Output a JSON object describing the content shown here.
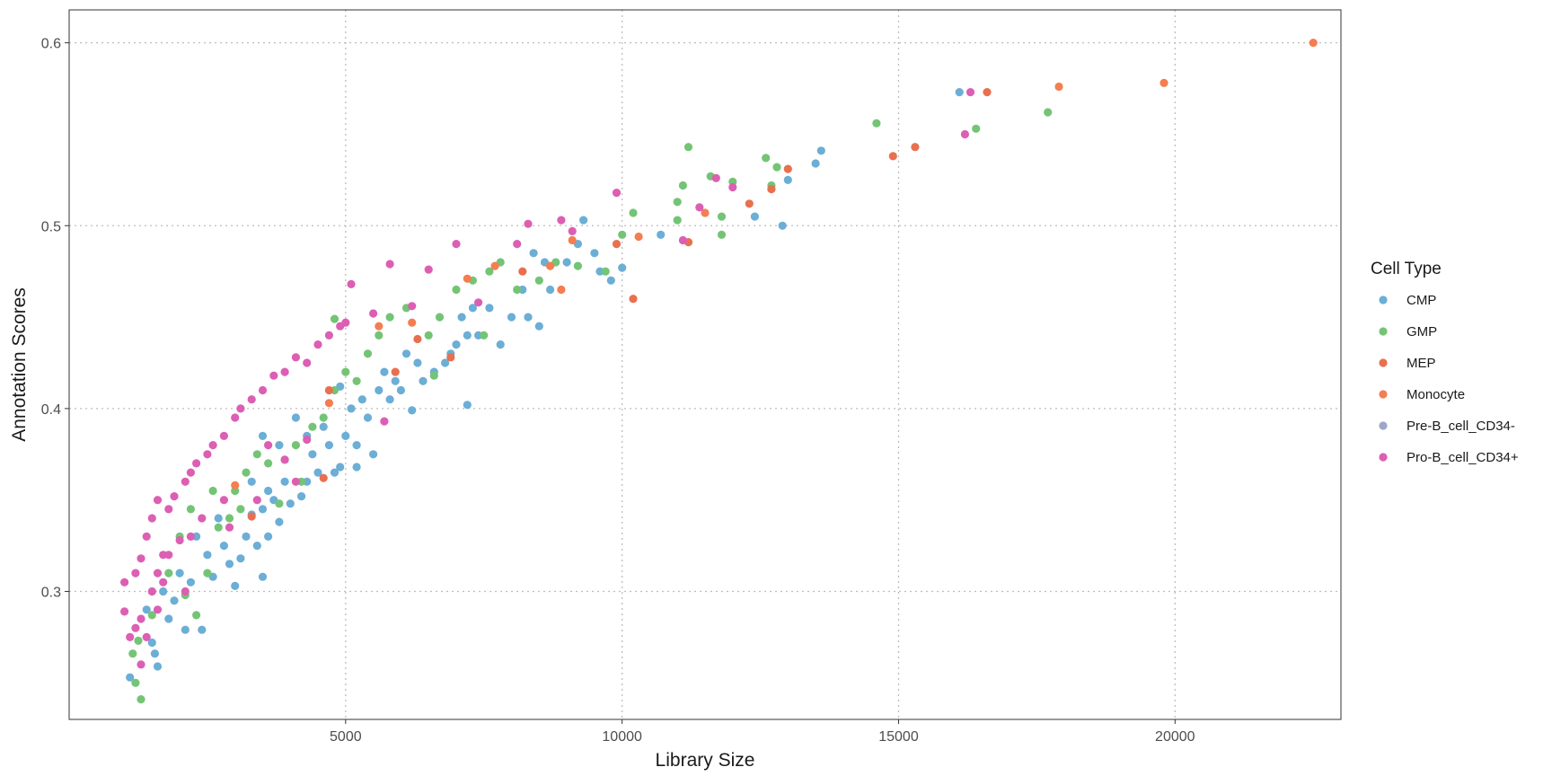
{
  "chart_data": {
    "type": "scatter",
    "title": "",
    "xlabel": "Library Size",
    "ylabel": "Annotation Scores",
    "xlim": [
      0,
      23000
    ],
    "ylim": [
      0.23,
      0.618
    ],
    "x_ticks": [
      5000,
      10000,
      15000,
      20000
    ],
    "y_ticks": [
      0.3,
      0.4,
      0.5,
      0.6
    ],
    "grid": true,
    "grid_style": "dotted",
    "legend": {
      "title": "Cell Type",
      "position": "right",
      "entries": [
        {
          "name": "CMP",
          "color": "#6baed6"
        },
        {
          "name": "GMP",
          "color": "#74c476"
        },
        {
          "name": "MEP",
          "color": "#e8704f"
        },
        {
          "name": "Monocyte",
          "color": "#f47e50"
        },
        {
          "name": "Pre-B_cell_CD34-",
          "color": "#9ea6c9"
        },
        {
          "name": "Pro-B_cell_CD34+",
          "color": "#dc5fb3"
        }
      ]
    },
    "series": [
      {
        "name": "CMP",
        "color": "#6baed6",
        "points": [
          [
            1100,
            0.253
          ],
          [
            1500,
            0.272
          ],
          [
            1600,
            0.259
          ],
          [
            1550,
            0.266
          ],
          [
            1800,
            0.285
          ],
          [
            2100,
            0.279
          ],
          [
            2400,
            0.279
          ],
          [
            1400,
            0.29
          ],
          [
            1700,
            0.3
          ],
          [
            1900,
            0.295
          ],
          [
            2200,
            0.305
          ],
          [
            2000,
            0.31
          ],
          [
            2600,
            0.308
          ],
          [
            2900,
            0.315
          ],
          [
            3100,
            0.318
          ],
          [
            3000,
            0.303
          ],
          [
            3500,
            0.308
          ],
          [
            3400,
            0.325
          ],
          [
            3600,
            0.33
          ],
          [
            3800,
            0.338
          ],
          [
            3200,
            0.33
          ],
          [
            3300,
            0.342
          ],
          [
            2800,
            0.325
          ],
          [
            2500,
            0.32
          ],
          [
            2300,
            0.33
          ],
          [
            2700,
            0.34
          ],
          [
            3500,
            0.345
          ],
          [
            3700,
            0.35
          ],
          [
            4000,
            0.348
          ],
          [
            4200,
            0.352
          ],
          [
            3900,
            0.36
          ],
          [
            3600,
            0.355
          ],
          [
            3300,
            0.36
          ],
          [
            4300,
            0.36
          ],
          [
            4500,
            0.365
          ],
          [
            4800,
            0.365
          ],
          [
            4900,
            0.368
          ],
          [
            4400,
            0.375
          ],
          [
            4700,
            0.38
          ],
          [
            5000,
            0.385
          ],
          [
            5200,
            0.38
          ],
          [
            4600,
            0.39
          ],
          [
            4300,
            0.385
          ],
          [
            3800,
            0.38
          ],
          [
            3500,
            0.385
          ],
          [
            5100,
            0.4
          ],
          [
            5400,
            0.395
          ],
          [
            5300,
            0.405
          ],
          [
            5600,
            0.41
          ],
          [
            5800,
            0.405
          ],
          [
            6000,
            0.41
          ],
          [
            6200,
            0.399
          ],
          [
            6400,
            0.415
          ],
          [
            6600,
            0.42
          ],
          [
            6300,
            0.425
          ],
          [
            6800,
            0.425
          ],
          [
            6900,
            0.43
          ],
          [
            7000,
            0.435
          ],
          [
            7200,
            0.44
          ],
          [
            7400,
            0.44
          ],
          [
            7100,
            0.45
          ],
          [
            7300,
            0.455
          ],
          [
            7600,
            0.455
          ],
          [
            7800,
            0.435
          ],
          [
            8000,
            0.45
          ],
          [
            8300,
            0.45
          ],
          [
            8500,
            0.445
          ],
          [
            8700,
            0.465
          ],
          [
            8200,
            0.465
          ],
          [
            8600,
            0.48
          ],
          [
            8400,
            0.485
          ],
          [
            9000,
            0.48
          ],
          [
            9200,
            0.49
          ],
          [
            9500,
            0.485
          ],
          [
            9600,
            0.475
          ],
          [
            9800,
            0.47
          ],
          [
            10000,
            0.477
          ],
          [
            9300,
            0.503
          ],
          [
            10700,
            0.495
          ],
          [
            12400,
            0.505
          ],
          [
            12900,
            0.5
          ],
          [
            13000,
            0.525
          ],
          [
            12700,
            0.52
          ],
          [
            13500,
            0.534
          ],
          [
            13600,
            0.541
          ],
          [
            16100,
            0.573
          ],
          [
            7200,
            0.402
          ],
          [
            5200,
            0.368
          ],
          [
            5500,
            0.375
          ],
          [
            6100,
            0.43
          ],
          [
            5900,
            0.415
          ],
          [
            5700,
            0.42
          ],
          [
            4900,
            0.412
          ],
          [
            4100,
            0.395
          ]
        ]
      },
      {
        "name": "GMP",
        "color": "#74c476",
        "points": [
          [
            1300,
            0.241
          ],
          [
            1200,
            0.25
          ],
          [
            1150,
            0.266
          ],
          [
            1250,
            0.273
          ],
          [
            1500,
            0.287
          ],
          [
            2300,
            0.287
          ],
          [
            2500,
            0.31
          ],
          [
            2100,
            0.298
          ],
          [
            1800,
            0.31
          ],
          [
            2700,
            0.335
          ],
          [
            2900,
            0.34
          ],
          [
            3000,
            0.355
          ],
          [
            3200,
            0.365
          ],
          [
            3400,
            0.375
          ],
          [
            3600,
            0.37
          ],
          [
            3900,
            0.372
          ],
          [
            4100,
            0.38
          ],
          [
            4400,
            0.39
          ],
          [
            4600,
            0.395
          ],
          [
            4800,
            0.41
          ],
          [
            5000,
            0.42
          ],
          [
            5200,
            0.415
          ],
          [
            5400,
            0.43
          ],
          [
            5600,
            0.44
          ],
          [
            5800,
            0.45
          ],
          [
            6100,
            0.455
          ],
          [
            6500,
            0.44
          ],
          [
            6700,
            0.45
          ],
          [
            7000,
            0.465
          ],
          [
            7300,
            0.47
          ],
          [
            7600,
            0.475
          ],
          [
            7800,
            0.48
          ],
          [
            8100,
            0.465
          ],
          [
            8500,
            0.47
          ],
          [
            8800,
            0.48
          ],
          [
            9200,
            0.478
          ],
          [
            9700,
            0.475
          ],
          [
            10000,
            0.495
          ],
          [
            10200,
            0.507
          ],
          [
            11000,
            0.513
          ],
          [
            11100,
            0.522
          ],
          [
            11200,
            0.543
          ],
          [
            11600,
            0.527
          ],
          [
            11800,
            0.505
          ],
          [
            12000,
            0.524
          ],
          [
            12600,
            0.537
          ],
          [
            12700,
            0.522
          ],
          [
            12800,
            0.532
          ],
          [
            14600,
            0.556
          ],
          [
            16400,
            0.553
          ],
          [
            17700,
            0.562
          ],
          [
            11000,
            0.503
          ],
          [
            11800,
            0.495
          ],
          [
            4800,
            0.449
          ],
          [
            3100,
            0.345
          ],
          [
            2600,
            0.355
          ],
          [
            2000,
            0.33
          ],
          [
            2200,
            0.345
          ],
          [
            4200,
            0.36
          ],
          [
            3800,
            0.348
          ],
          [
            6600,
            0.418
          ],
          [
            7500,
            0.44
          ]
        ]
      },
      {
        "name": "MEP",
        "color": "#e8704f",
        "points": [
          [
            3300,
            0.341
          ],
          [
            4600,
            0.362
          ],
          [
            4700,
            0.41
          ],
          [
            5900,
            0.42
          ],
          [
            6300,
            0.438
          ],
          [
            6900,
            0.428
          ],
          [
            8200,
            0.475
          ],
          [
            9900,
            0.49
          ],
          [
            10200,
            0.46
          ],
          [
            11200,
            0.491
          ],
          [
            12300,
            0.512
          ],
          [
            12700,
            0.52
          ],
          [
            13000,
            0.531
          ],
          [
            15300,
            0.543
          ],
          [
            14900,
            0.538
          ],
          [
            16600,
            0.573
          ]
        ]
      },
      {
        "name": "Monocyte",
        "color": "#f47e50",
        "points": [
          [
            3000,
            0.358
          ],
          [
            4700,
            0.403
          ],
          [
            5600,
            0.445
          ],
          [
            6200,
            0.447
          ],
          [
            7200,
            0.471
          ],
          [
            7700,
            0.478
          ],
          [
            8700,
            0.478
          ],
          [
            8900,
            0.465
          ],
          [
            9100,
            0.492
          ],
          [
            10300,
            0.494
          ],
          [
            11500,
            0.507
          ],
          [
            17900,
            0.576
          ],
          [
            19800,
            0.578
          ],
          [
            22500,
            0.6
          ]
        ]
      },
      {
        "name": "Pre-B_cell_CD34-",
        "color": "#9ea6c9",
        "points": []
      },
      {
        "name": "Pro-B_cell_CD34+",
        "color": "#dc5fb3",
        "points": [
          [
            1000,
            0.289
          ],
          [
            1100,
            0.275
          ],
          [
            1200,
            0.28
          ],
          [
            1300,
            0.285
          ],
          [
            1400,
            0.275
          ],
          [
            1500,
            0.3
          ],
          [
            1600,
            0.31
          ],
          [
            1700,
            0.32
          ],
          [
            1200,
            0.31
          ],
          [
            1300,
            0.318
          ],
          [
            1000,
            0.305
          ],
          [
            1400,
            0.33
          ],
          [
            1500,
            0.34
          ],
          [
            1600,
            0.35
          ],
          [
            1800,
            0.345
          ],
          [
            1900,
            0.352
          ],
          [
            2100,
            0.36
          ],
          [
            2200,
            0.365
          ],
          [
            2300,
            0.37
          ],
          [
            2500,
            0.375
          ],
          [
            2600,
            0.38
          ],
          [
            2800,
            0.385
          ],
          [
            3000,
            0.395
          ],
          [
            3100,
            0.4
          ],
          [
            3300,
            0.405
          ],
          [
            3500,
            0.41
          ],
          [
            3700,
            0.418
          ],
          [
            3900,
            0.42
          ],
          [
            4100,
            0.428
          ],
          [
            4300,
            0.425
          ],
          [
            4500,
            0.435
          ],
          [
            4700,
            0.44
          ],
          [
            4900,
            0.445
          ],
          [
            5000,
            0.447
          ],
          [
            5100,
            0.468
          ],
          [
            5500,
            0.452
          ],
          [
            5800,
            0.479
          ],
          [
            6200,
            0.456
          ],
          [
            6500,
            0.476
          ],
          [
            7000,
            0.49
          ],
          [
            7400,
            0.458
          ],
          [
            8100,
            0.49
          ],
          [
            8300,
            0.501
          ],
          [
            8900,
            0.503
          ],
          [
            9100,
            0.497
          ],
          [
            9900,
            0.518
          ],
          [
            11400,
            0.51
          ],
          [
            11700,
            0.526
          ],
          [
            12000,
            0.521
          ],
          [
            11100,
            0.492
          ],
          [
            16200,
            0.55
          ],
          [
            16300,
            0.573
          ],
          [
            4300,
            0.383
          ],
          [
            3400,
            0.35
          ],
          [
            2900,
            0.335
          ],
          [
            2400,
            0.34
          ],
          [
            2000,
            0.328
          ],
          [
            1800,
            0.32
          ],
          [
            1700,
            0.305
          ],
          [
            2100,
            0.3
          ],
          [
            5700,
            0.393
          ],
          [
            3900,
            0.372
          ],
          [
            3600,
            0.38
          ],
          [
            4100,
            0.36
          ],
          [
            2800,
            0.35
          ],
          [
            2200,
            0.33
          ],
          [
            1600,
            0.29
          ],
          [
            1300,
            0.26
          ]
        ]
      }
    ]
  }
}
